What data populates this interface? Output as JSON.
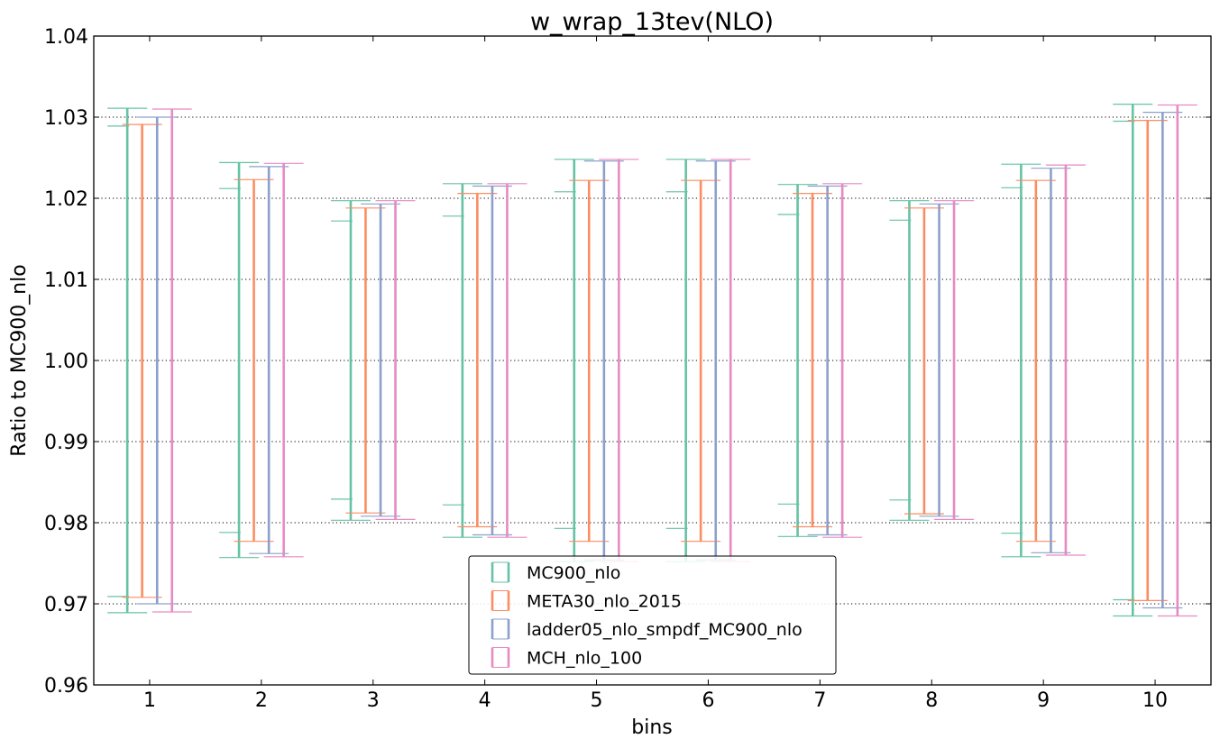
{
  "chart_data": {
    "type": "errorbar",
    "title": "w_wrap_13tev(NLO)",
    "xlabel": "bins",
    "ylabel": "Ratio to MC900_nlo",
    "xlim": [
      0.5,
      10.5
    ],
    "ylim": [
      0.96,
      1.04
    ],
    "x": [
      1,
      2,
      3,
      4,
      5,
      6,
      7,
      8,
      9,
      10
    ],
    "yticks": [
      "0.96",
      "0.97",
      "0.98",
      "0.99",
      "1.00",
      "1.01",
      "1.02",
      "1.03",
      "1.04"
    ],
    "grid": "horizontal-dotted",
    "legend_position": "lower-center",
    "series": [
      {
        "name": "MC900_nlo",
        "color": "#66c2a5",
        "outer_low": [
          0.9689,
          0.9757,
          0.9803,
          0.9782,
          0.9752,
          0.9752,
          0.9783,
          0.9803,
          0.9758,
          0.9685
        ],
        "outer_high": [
          1.0311,
          1.0244,
          1.0197,
          1.0218,
          1.0248,
          1.0248,
          1.0217,
          1.0197,
          1.0242,
          1.0316
        ],
        "inner_low": [
          0.9709,
          0.9788,
          0.9829,
          0.9822,
          0.9793,
          0.9793,
          0.9823,
          0.9828,
          0.9787,
          0.9705
        ],
        "inner_high": [
          1.0289,
          1.0212,
          1.0172,
          1.0178,
          1.0208,
          1.0208,
          1.018,
          1.0173,
          1.0213,
          1.0295
        ]
      },
      {
        "name": "META30_nlo_2015",
        "color": "#fc8d62",
        "outer_low": [
          0.9708,
          0.9777,
          0.9812,
          0.9795,
          0.9777,
          0.9777,
          0.9795,
          0.9811,
          0.9777,
          0.9704
        ],
        "outer_high": [
          1.0291,
          1.0223,
          1.0188,
          1.0206,
          1.0222,
          1.0222,
          1.0206,
          1.0188,
          1.0222,
          1.0296
        ],
        "inner_low": [
          0.9708,
          0.9777,
          0.9812,
          0.9795,
          0.9777,
          0.9777,
          0.9795,
          0.9811,
          0.9777,
          0.9704
        ],
        "inner_high": [
          1.0291,
          1.0223,
          1.0188,
          1.0206,
          1.0222,
          1.0222,
          1.0206,
          1.0188,
          1.0222,
          1.0296
        ]
      },
      {
        "name": "ladder05_nlo_smpdf_MC900_nlo",
        "color": "#8da0cb",
        "outer_low": [
          0.97,
          0.9762,
          0.9808,
          0.9785,
          0.9754,
          0.9754,
          0.9785,
          0.9808,
          0.9763,
          0.9695
        ],
        "outer_high": [
          1.03,
          1.0239,
          1.0193,
          1.0215,
          1.0246,
          1.0246,
          1.0215,
          1.0193,
          1.0237,
          1.0306
        ],
        "inner_low": [
          0.97,
          0.9762,
          0.9808,
          0.9785,
          0.9754,
          0.9754,
          0.9785,
          0.9808,
          0.9763,
          0.9695
        ],
        "inner_high": [
          1.03,
          1.0239,
          1.0193,
          1.0215,
          1.0246,
          1.0246,
          1.0215,
          1.0193,
          1.0237,
          1.0306
        ]
      },
      {
        "name": "MCH_nlo_100",
        "color": "#e78ac3",
        "outer_low": [
          0.969,
          0.9758,
          0.9804,
          0.9782,
          0.9752,
          0.9752,
          0.9782,
          0.9804,
          0.976,
          0.9685
        ],
        "outer_high": [
          1.031,
          1.0243,
          1.0197,
          1.0218,
          1.0248,
          1.0248,
          1.0218,
          1.0197,
          1.0241,
          1.0315
        ],
        "inner_low": [
          0.969,
          0.9758,
          0.9804,
          0.9782,
          0.9752,
          0.9752,
          0.9782,
          0.9804,
          0.976,
          0.9685
        ],
        "inner_high": [
          1.031,
          1.0243,
          1.0197,
          1.0218,
          1.0248,
          1.0248,
          1.0218,
          1.0197,
          1.0241,
          1.0315
        ]
      }
    ]
  }
}
